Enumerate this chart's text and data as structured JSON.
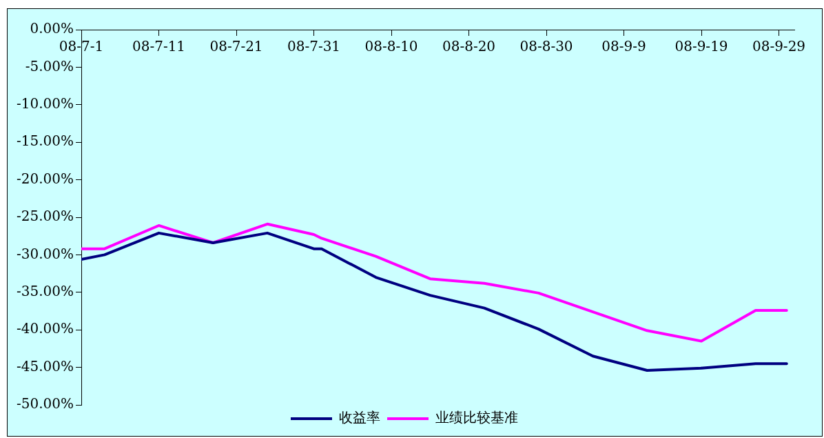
{
  "chart_data": {
    "type": "line",
    "x": [
      "--07-01",
      "--07-04",
      "--07-11",
      "--07-18",
      "--07-25",
      "--07-31",
      "--08-01",
      "--08-08",
      "--08-15",
      "--08-22",
      "--08-29",
      "--09-05",
      "--09-12",
      "--09-19",
      "--09-26",
      "--09-30"
    ],
    "series": [
      {
        "name": "收益率",
        "color": "#000080",
        "values": [
          -30.6,
          -30.0,
          -27.1,
          -28.4,
          -27.1,
          -29.2,
          -29.2,
          -33.0,
          -35.4,
          -37.1,
          -39.9,
          -43.5,
          -45.4,
          -45.1,
          -44.5,
          -44.5
        ]
      },
      {
        "name": "业绩比较基准",
        "color": "#ff00ff",
        "values": [
          -29.2,
          -29.2,
          -26.1,
          -28.4,
          -25.9,
          -27.3,
          -27.8,
          -30.2,
          -33.2,
          -33.8,
          -35.1,
          -37.6,
          -40.1,
          -41.5,
          -37.4,
          -37.4
        ]
      }
    ],
    "xlim": [
      "--07-01",
      "--10-01"
    ],
    "xticks": [
      {
        "value": "--07-01",
        "label": "08-7-1"
      },
      {
        "value": "--07-11",
        "label": "08-7-11"
      },
      {
        "value": "--07-21",
        "label": "08-7-21"
      },
      {
        "value": "--07-31",
        "label": "08-7-31"
      },
      {
        "value": "--08-10",
        "label": "08-8-10"
      },
      {
        "value": "--08-20",
        "label": "08-8-20"
      },
      {
        "value": "--08-30",
        "label": "08-8-30"
      },
      {
        "value": "--09-09",
        "label": "08-9-9"
      },
      {
        "value": "--09-19",
        "label": "08-9-19"
      },
      {
        "value": "--09-29",
        "label": "08-9-29"
      }
    ],
    "ylim": [
      -50,
      0
    ],
    "yticks": [
      {
        "value": 0,
        "label": "0.00%"
      },
      {
        "value": -5,
        "label": "-5.00%"
      },
      {
        "value": -10,
        "label": "-10.00%"
      },
      {
        "value": -15,
        "label": "-15.00%"
      },
      {
        "value": -20,
        "label": "-20.00%"
      },
      {
        "value": -25,
        "label": "-25.00%"
      },
      {
        "value": -30,
        "label": "-30.00%"
      },
      {
        "value": -35,
        "label": "-35.00%"
      },
      {
        "value": -40,
        "label": "-40.00%"
      },
      {
        "value": -45,
        "label": "-45.00%"
      },
      {
        "value": -50,
        "label": "-50.00%"
      }
    ],
    "legend": "bottom",
    "marker": "none"
  }
}
